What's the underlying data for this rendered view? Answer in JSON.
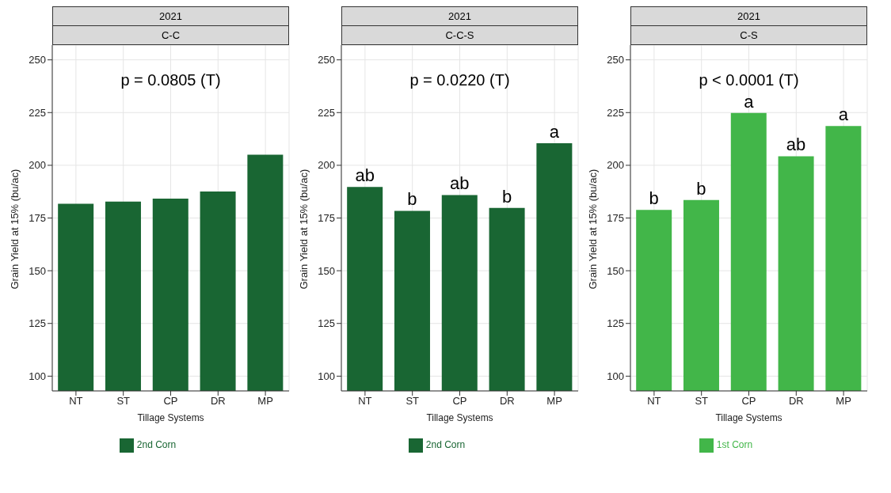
{
  "chart_data": [
    {
      "type": "bar",
      "title": "2021",
      "subtitle": "C-C",
      "xlabel": "Tillage Systems",
      "ylabel": "Grain Yield at 15% (bu/ac)",
      "categories": [
        "NT",
        "ST",
        "CP",
        "DR",
        "MP"
      ],
      "series": [
        {
          "name": "2nd Corn",
          "color": "#196633",
          "values": [
            181.8,
            182.8,
            184.2,
            187.6,
            205
          ]
        }
      ],
      "ylim": [
        93,
        257
      ],
      "yticks": [
        100,
        125,
        150,
        175,
        200,
        225,
        250
      ],
      "grid": true,
      "legend": "bottom",
      "annotations": [
        "p = 0.0805 (T)"
      ]
    },
    {
      "type": "bar",
      "title": "2021",
      "subtitle": "C-C-S",
      "xlabel": "Tillage Systems",
      "ylabel": "Grain Yield at 15% (bu/ac)",
      "categories": [
        "NT",
        "ST",
        "CP",
        "DR",
        "MP"
      ],
      "series": [
        {
          "name": "2nd Corn",
          "color": "#196633",
          "values": [
            189.7,
            178.4,
            185.9,
            179.8,
            210.5
          ],
          "value_labels": [
            "ab",
            "b",
            "ab",
            "b",
            "a"
          ]
        }
      ],
      "ylim": [
        93,
        257
      ],
      "yticks": [
        100,
        125,
        150,
        175,
        200,
        225,
        250
      ],
      "grid": true,
      "legend": "bottom",
      "annotations": [
        "p = 0.0220 (T)"
      ]
    },
    {
      "type": "bar",
      "title": "2021",
      "subtitle": "C-S",
      "xlabel": "Tillage Systems",
      "ylabel": "Grain Yield at 15% (bu/ac)",
      "categories": [
        "NT",
        "ST",
        "CP",
        "DR",
        "MP"
      ],
      "series": [
        {
          "name": "1st Corn",
          "color": "#42b649",
          "values": [
            178.8,
            183.5,
            224.8,
            204.3,
            218.6
          ],
          "value_labels": [
            "b",
            "b",
            "a",
            "ab",
            "a"
          ]
        }
      ],
      "ylim": [
        93,
        257
      ],
      "yticks": [
        100,
        125,
        150,
        175,
        200,
        225,
        250
      ],
      "grid": true,
      "legend": "bottom",
      "annotations": [
        "p < 0.0001 (T)"
      ]
    }
  ]
}
